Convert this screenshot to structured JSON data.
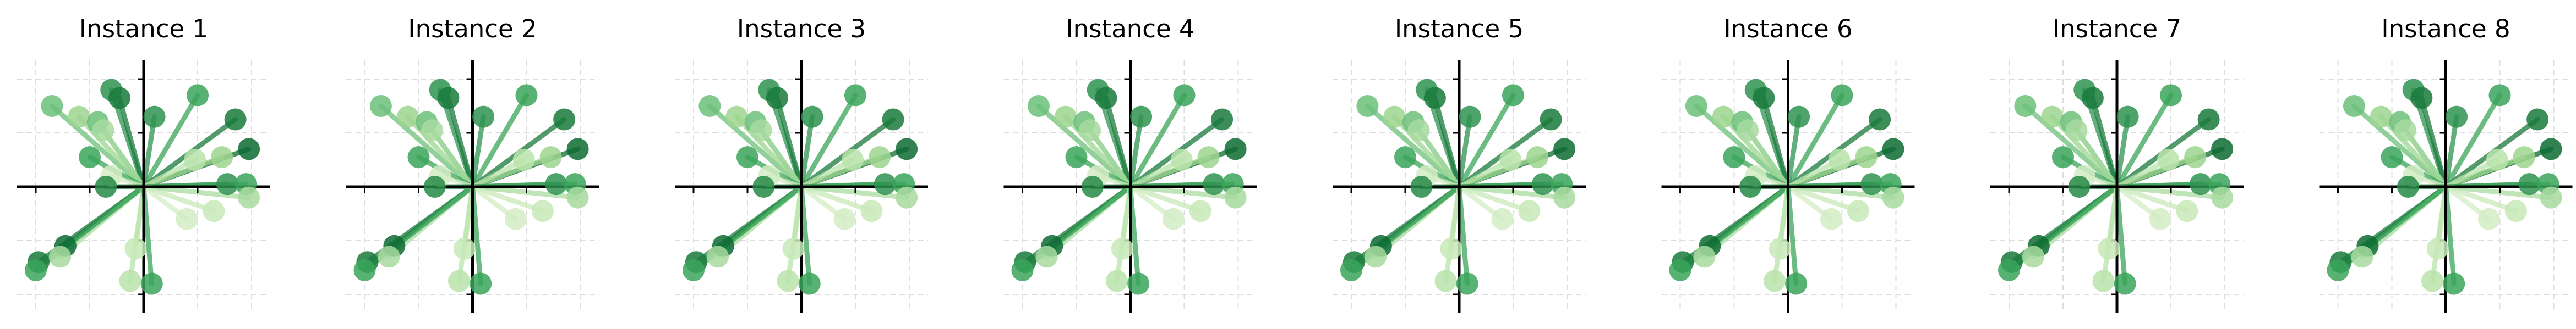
{
  "figure": {
    "background": "#ffffff",
    "grid_color": "#dddddd",
    "axis_color": "#000000"
  },
  "chart_data": [
    {
      "type": "scatter",
      "title": "Instance 1"
    },
    {
      "type": "scatter",
      "title": "Instance 2"
    },
    {
      "type": "scatter",
      "title": "Instance 3"
    },
    {
      "type": "scatter",
      "title": "Instance 4"
    },
    {
      "type": "scatter",
      "title": "Instance 5"
    },
    {
      "type": "scatter",
      "title": "Instance 6"
    },
    {
      "type": "scatter",
      "title": "Instance 7"
    },
    {
      "type": "scatter",
      "title": "Instance 8"
    }
  ],
  "shared_chart": {
    "type": "scatter",
    "grid": true,
    "grid_style": "dashed",
    "axes_through_origin": true,
    "xlim": [
      -2.4,
      2.4
    ],
    "ylim": [
      -2.4,
      2.4
    ],
    "x_ticks": [
      -2,
      -1,
      0,
      1,
      2
    ],
    "y_ticks": [
      -2,
      -1,
      0,
      1,
      2
    ],
    "marker": "circle with line to origin",
    "colormap": "Greens",
    "points": [
      {
        "x": -0.6,
        "y": 1.8,
        "color": "#2e9350"
      },
      {
        "x": -0.45,
        "y": 1.65,
        "color": "#1a7a3c"
      },
      {
        "x": 0.2,
        "y": 1.3,
        "color": "#2e9350"
      },
      {
        "x": 1.0,
        "y": 1.7,
        "color": "#3aa45a"
      },
      {
        "x": -1.7,
        "y": 1.5,
        "color": "#6cc07a"
      },
      {
        "x": -1.2,
        "y": 1.3,
        "color": "#9dd58f"
      },
      {
        "x": -0.85,
        "y": 1.2,
        "color": "#6cc07a"
      },
      {
        "x": -0.75,
        "y": 1.05,
        "color": "#a8dba0"
      },
      {
        "x": 1.7,
        "y": 1.25,
        "color": "#1a7a3c"
      },
      {
        "x": 1.95,
        "y": 0.7,
        "color": "#0d6b32"
      },
      {
        "x": 1.45,
        "y": 0.55,
        "color": "#9dd58f"
      },
      {
        "x": 0.95,
        "y": 0.5,
        "color": "#b8e3aa"
      },
      {
        "x": -1.0,
        "y": 0.55,
        "color": "#3aa45a"
      },
      {
        "x": -0.6,
        "y": 0.2,
        "color": "#d4ecc4"
      },
      {
        "x": -0.7,
        "y": 0.0,
        "color": "#258a45"
      },
      {
        "x": 1.55,
        "y": 0.05,
        "color": "#2e9350"
      },
      {
        "x": 1.9,
        "y": 0.05,
        "color": "#3aa45a"
      },
      {
        "x": 1.95,
        "y": -0.2,
        "color": "#a8dba0"
      },
      {
        "x": 1.3,
        "y": -0.45,
        "color": "#c8e9b8"
      },
      {
        "x": 0.8,
        "y": -0.6,
        "color": "#d4ecc4"
      },
      {
        "x": -1.95,
        "y": -1.4,
        "color": "#1a7a3c"
      },
      {
        "x": -1.45,
        "y": -1.1,
        "color": "#0d6b32"
      },
      {
        "x": -1.55,
        "y": -1.3,
        "color": "#a8dba0"
      },
      {
        "x": -2.0,
        "y": -1.55,
        "color": "#3aa45a"
      },
      {
        "x": -0.15,
        "y": -1.15,
        "color": "#c8e9b8"
      },
      {
        "x": -0.25,
        "y": -1.75,
        "color": "#b8e3aa"
      },
      {
        "x": 0.15,
        "y": -1.8,
        "color": "#3aa45a"
      }
    ]
  }
}
